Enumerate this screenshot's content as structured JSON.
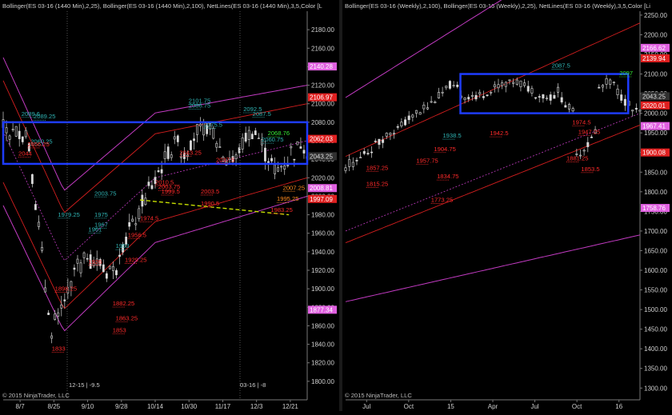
{
  "left": {
    "header": "Bollinger(ES 03-16 (1440 Min),2,25), Bollinger(ES 03-16 (1440 Min),2,100), NetLines(ES 03-16 (1440 Min),3,5,Color [L",
    "copyright": "© 2015 NinjaTrader, LLC",
    "session_left_label": "12-15 | -9.5",
    "session_right_label": "03-16 | -8"
  },
  "right": {
    "header": "Bollinger(ES 03-16 (Weekly),2,100), Bollinger(ES 03-16 (Weekly),2,25), NetLines(ES 03-16 (Weekly),3,5,Color [Li",
    "copyright": "© 2015 NinjaTrader, LLC"
  },
  "colors": {
    "background": "#000000",
    "axis_text": "#cfcfcf",
    "bollinger_outer": "#c23bc2",
    "bollinger_inner": "#d21e1e",
    "box": "#1e3cff",
    "label_cyan": "#2fb3b3",
    "label_red": "#ff2a2a",
    "label_orange": "#ff8a1e",
    "label_green": "#34e834",
    "trendline": "#c8e000"
  },
  "chart_data": [
    {
      "type": "line",
      "name_ref": "left",
      "xlabels": [
        "8/7",
        "8/25",
        "9/10",
        "9/28",
        "10/14",
        "10/30",
        "11/17",
        "12/3",
        "12/21"
      ],
      "ylim": [
        1780,
        2200
      ],
      "yticks": [
        1800,
        1820,
        1840,
        1860,
        1880,
        1900,
        1920,
        1940,
        1960,
        1980,
        2000,
        2020,
        2040,
        2060,
        2080,
        2100,
        2120,
        2140,
        2160,
        2180
      ],
      "price_tags": [
        {
          "value": 2140.28,
          "text": "2140.28",
          "color": "#e060e0"
        },
        {
          "value": 2106.97,
          "text": "2106.97",
          "color": "#e02020"
        },
        {
          "value": 2062.03,
          "text": "2062.03",
          "color": "#e02020"
        },
        {
          "value": 2043.25,
          "text": "2043.25",
          "color": "#303030"
        },
        {
          "value": 2008.81,
          "text": "2008.81",
          "color": "#e060e0"
        },
        {
          "value": 1997.09,
          "text": "1997.09",
          "color": "#e02020"
        },
        {
          "value": 1877.34,
          "text": "1877.34",
          "color": "#e060e0"
        }
      ],
      "annotations": [
        {
          "text": "2089.6",
          "x": 0.06,
          "y": 2087,
          "color": "cyan"
        },
        {
          "text": "2089.25",
          "x": 0.1,
          "y": 2084,
          "color": "cyan"
        },
        {
          "text": "2060.25",
          "x": 0.09,
          "y": 2057,
          "color": "cyan"
        },
        {
          "text": "2056.25",
          "x": 0.08,
          "y": 2054,
          "color": "red"
        },
        {
          "text": "2044",
          "x": 0.05,
          "y": 2044,
          "color": "red"
        },
        {
          "text": "2003.75",
          "x": 0.3,
          "y": 2001,
          "color": "cyan"
        },
        {
          "text": "1979.25",
          "x": 0.18,
          "y": 1978,
          "color": "cyan"
        },
        {
          "text": "1975",
          "x": 0.3,
          "y": 1978,
          "color": "cyan"
        },
        {
          "text": "1961",
          "x": 0.28,
          "y": 1962,
          "color": "cyan"
        },
        {
          "text": "1967",
          "x": 0.3,
          "y": 1967,
          "color": "cyan"
        },
        {
          "text": "1956.5",
          "x": 0.41,
          "y": 1956,
          "color": "red"
        },
        {
          "text": "1953",
          "x": 0.37,
          "y": 1944,
          "color": "cyan"
        },
        {
          "text": "1929.25",
          "x": 0.4,
          "y": 1929,
          "color": "red"
        },
        {
          "text": "1926",
          "x": 0.28,
          "y": 1927,
          "color": "red"
        },
        {
          "text": "1898.25",
          "x": 0.17,
          "y": 1898,
          "color": "red"
        },
        {
          "text": "1882.25",
          "x": 0.36,
          "y": 1882,
          "color": "red"
        },
        {
          "text": "1863.25",
          "x": 0.37,
          "y": 1866,
          "color": "red"
        },
        {
          "text": "1853",
          "x": 0.36,
          "y": 1853,
          "color": "red"
        },
        {
          "text": "1833",
          "x": 0.16,
          "y": 1833,
          "color": "red"
        },
        {
          "text": "2101.75",
          "x": 0.61,
          "y": 2101,
          "color": "cyan"
        },
        {
          "text": "2086.75",
          "x": 0.61,
          "y": 2096,
          "color": "cyan"
        },
        {
          "text": "2092.5",
          "x": 0.79,
          "y": 2092,
          "color": "cyan"
        },
        {
          "text": "2087.5",
          "x": 0.82,
          "y": 2087,
          "color": "cyan"
        },
        {
          "text": "2075.5",
          "x": 0.66,
          "y": 2075,
          "color": "cyan"
        },
        {
          "text": "2068.76",
          "x": 0.87,
          "y": 2066,
          "color": "green"
        },
        {
          "text": "2060.75",
          "x": 0.85,
          "y": 2059,
          "color": "cyan"
        },
        {
          "text": "2043.25",
          "x": 0.58,
          "y": 2045,
          "color": "red"
        },
        {
          "text": "2037.5",
          "x": 0.7,
          "y": 2037,
          "color": "red"
        },
        {
          "text": "2010.5",
          "x": 0.5,
          "y": 2013,
          "color": "red"
        },
        {
          "text": "2003.75",
          "x": 0.51,
          "y": 2008,
          "color": "red"
        },
        {
          "text": "1999.5",
          "x": 0.52,
          "y": 2003,
          "color": "red"
        },
        {
          "text": "2003.5",
          "x": 0.65,
          "y": 2003,
          "color": "red"
        },
        {
          "text": "2007.25",
          "x": 0.92,
          "y": 2007,
          "color": "orange"
        },
        {
          "text": "1995.25",
          "x": 0.9,
          "y": 1995,
          "color": "orange"
        },
        {
          "text": "1990.5",
          "x": 0.65,
          "y": 1990,
          "color": "red"
        },
        {
          "text": "1983.25",
          "x": 0.88,
          "y": 1983,
          "color": "red"
        },
        {
          "text": "1974.5",
          "x": 0.45,
          "y": 1974,
          "color": "red"
        }
      ],
      "trendline": {
        "from": [
          0.45,
          1996
        ],
        "to": [
          0.94,
          1980
        ]
      },
      "box": {
        "ylow": 2035,
        "yhigh": 2080
      }
    },
    {
      "type": "line",
      "name_ref": "right",
      "xlabels": [
        "Jul",
        "Oct",
        "15",
        "Apr",
        "Jul",
        "Oct",
        "16"
      ],
      "ylim": [
        1270,
        2260
      ],
      "yticks": [
        1300,
        1350,
        1400,
        1450,
        1500,
        1550,
        1600,
        1650,
        1700,
        1750,
        1800,
        1850,
        1900,
        1950,
        2000,
        2050,
        2100,
        2150,
        2200,
        2250
      ],
      "price_tags": [
        {
          "value": 2166.62,
          "text": "2166.62",
          "color": "#e060e0"
        },
        {
          "value": 2139.94,
          "text": "2139.94",
          "color": "#e02020"
        },
        {
          "value": 2043.25,
          "text": "2043.25",
          "color": "#303030"
        },
        {
          "value": 2020.01,
          "text": "2020.01",
          "color": "#e02020"
        },
        {
          "value": 1967.41,
          "text": "1967.41",
          "color": "#e060e0"
        },
        {
          "value": 1900.08,
          "text": "1900.08",
          "color": "#e02020"
        },
        {
          "value": 1758.76,
          "text": "1758.76",
          "color": "#e060e0"
        }
      ],
      "annotations": [
        {
          "text": "2097",
          "x": 0.93,
          "y": 2097,
          "color": "green"
        },
        {
          "text": "1974.5",
          "x": 0.77,
          "y": 1972,
          "color": "red"
        },
        {
          "text": "1947.25",
          "x": 0.79,
          "y": 1947,
          "color": "red"
        },
        {
          "text": "1881.25",
          "x": 0.75,
          "y": 1880,
          "color": "red"
        },
        {
          "text": "1853.5",
          "x": 0.8,
          "y": 1853,
          "color": "red"
        },
        {
          "text": "1904.75",
          "x": 0.3,
          "y": 1904,
          "color": "red"
        },
        {
          "text": "1834.75",
          "x": 0.31,
          "y": 1834,
          "color": "red"
        },
        {
          "text": "1773.25",
          "x": 0.29,
          "y": 1774,
          "color": "red"
        },
        {
          "text": "1942.5",
          "x": 0.49,
          "y": 1944,
          "color": "red"
        },
        {
          "text": "1957.75",
          "x": 0.24,
          "y": 1874,
          "color": "red"
        },
        {
          "text": "1815.25",
          "x": 0.07,
          "y": 1815,
          "color": "red"
        },
        {
          "text": "1857.25",
          "x": 0.07,
          "y": 1856,
          "color": "red"
        },
        {
          "text": "1938.5",
          "x": 0.33,
          "y": 1938,
          "color": "cyan"
        },
        {
          "text": "2087.5",
          "x": 0.7,
          "y": 2116,
          "color": "cyan"
        }
      ],
      "box": {
        "ylow": 2000,
        "yhigh": 2100
      }
    }
  ]
}
